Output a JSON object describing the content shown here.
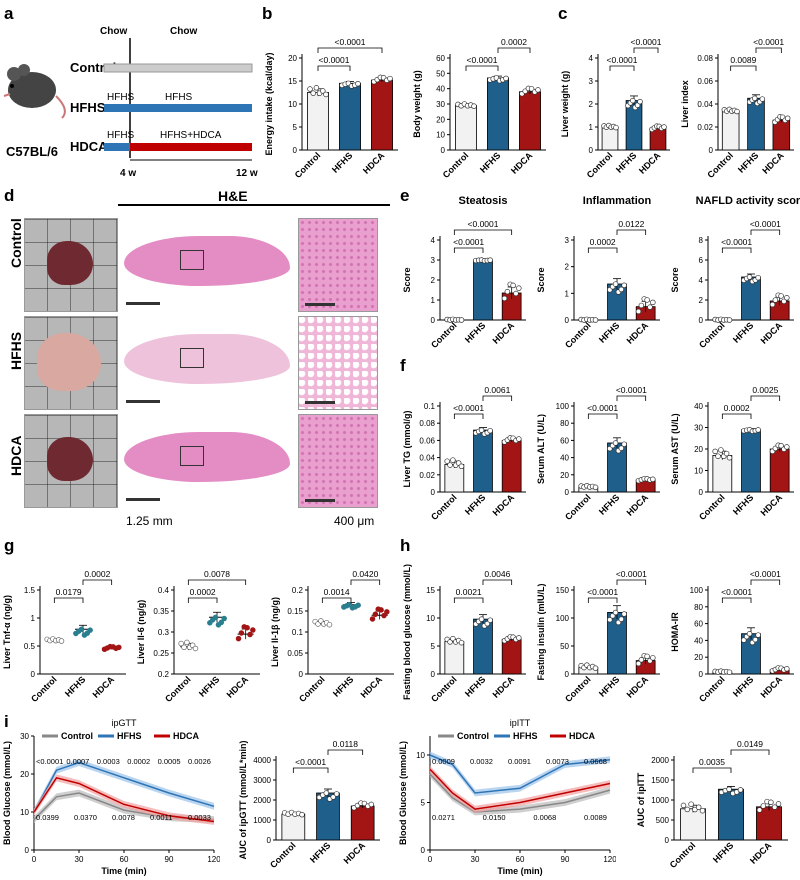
{
  "panels": {
    "a": "a",
    "b": "b",
    "c": "c",
    "d": "d",
    "e": "e",
    "f": "f",
    "g": "g",
    "h": "h",
    "i": "i"
  },
  "colors": {
    "control": "#f2f2f2",
    "hfhs": "#1f5f8b",
    "hdca": "#a31515",
    "chow": "#cccccc",
    "hfhsbar": "#2e75b6",
    "hdcabar": "#c00000",
    "teal": "#2a7f8f",
    "tissue": "#e48cc4"
  },
  "design": {
    "strain": "C57BL/6",
    "groups": [
      "Control",
      "HFHS",
      "HDCA"
    ],
    "phase1": [
      "Chow",
      "HFHS",
      "HFHS"
    ],
    "phase2": [
      "Chow",
      "HFHS",
      "HFHS+HDCA"
    ],
    "time_labels": [
      "4 w",
      "12 w"
    ]
  },
  "he": {
    "title": "H&E",
    "rows": [
      "Control",
      "HFHS",
      "HDCA"
    ],
    "scale1": "1.25 mm",
    "scale2": "400 μm"
  },
  "chart_data": [
    {
      "id": "b1",
      "type": "bar",
      "categories": [
        "Control",
        "HFHS",
        "HDCA"
      ],
      "values": [
        12.5,
        14.5,
        15.2
      ],
      "sem": [
        0.8,
        0.4,
        0.4
      ],
      "ylabel": "Energy intake (kcal/day)",
      "ylim": [
        0,
        20
      ],
      "yticks": [
        0,
        5,
        10,
        15,
        20
      ],
      "pvals": [
        "<0.0001",
        "<0.0001"
      ],
      "pairs": [
        [
          0,
          1
        ],
        [
          0,
          2
        ]
      ]
    },
    {
      "id": "b2",
      "type": "bar",
      "categories": [
        "Control",
        "HFHS",
        "HDCA"
      ],
      "values": [
        29,
        47,
        38
      ],
      "sem": [
        0.8,
        1.2,
        1.5
      ],
      "ylabel": "Body weight (g)",
      "ylim": [
        0,
        60
      ],
      "yticks": [
        0,
        10,
        20,
        30,
        40,
        50,
        60
      ],
      "pvals": [
        "<0.0001",
        "0.0002"
      ],
      "pairs": [
        [
          0,
          1
        ],
        [
          1,
          2
        ]
      ]
    },
    {
      "id": "c1",
      "type": "bar",
      "categories": [
        "Control",
        "HFHS",
        "HDCA"
      ],
      "values": [
        1.0,
        2.15,
        0.95
      ],
      "sem": [
        0.05,
        0.2,
        0.06
      ],
      "ylabel": "Liver weight (g)",
      "ylim": [
        0,
        4
      ],
      "yticks": [
        0,
        1,
        2,
        3,
        4
      ],
      "pvals": [
        "<0.0001",
        "<0.0001"
      ],
      "pairs": [
        [
          0,
          1
        ],
        [
          1,
          2
        ]
      ]
    },
    {
      "id": "c2",
      "type": "bar",
      "categories": [
        "Control",
        "HFHS",
        "HDCA"
      ],
      "values": [
        0.034,
        0.045,
        0.026
      ],
      "sem": [
        0.001,
        0.003,
        0.002
      ],
      "ylabel": "Liver index",
      "ylim": [
        0,
        0.08
      ],
      "yticks": [
        0,
        0.02,
        0.04,
        0.06,
        0.08
      ],
      "pvals": [
        "0.0089",
        "<0.0001"
      ],
      "pairs": [
        [
          0,
          1
        ],
        [
          1,
          2
        ]
      ]
    },
    {
      "id": "e1",
      "type": "bar",
      "title": "Steatosis",
      "categories": [
        "Control",
        "HFHS",
        "HDCA"
      ],
      "values": [
        0,
        3,
        1.35
      ],
      "sem": [
        0,
        0,
        0.3
      ],
      "ylabel": "Score",
      "ylim": [
        0,
        4
      ],
      "yticks": [
        0,
        1,
        2,
        3,
        4
      ],
      "pvals": [
        "<0.0001",
        "<0.0001"
      ],
      "pairs": [
        [
          0,
          1
        ],
        [
          0,
          2
        ]
      ]
    },
    {
      "id": "e2",
      "type": "bar",
      "title": "Inflammation",
      "categories": [
        "Control",
        "HFHS",
        "HDCA"
      ],
      "values": [
        0,
        1.35,
        0.5
      ],
      "sem": [
        0,
        0.2,
        0.2
      ],
      "ylabel": "Score",
      "ylim": [
        0,
        3
      ],
      "yticks": [
        0,
        1,
        2,
        3
      ],
      "pvals": [
        "0.0002",
        "0.0122"
      ],
      "pairs": [
        [
          0,
          1
        ],
        [
          1,
          2
        ]
      ]
    },
    {
      "id": "e3",
      "type": "bar",
      "title": "NAFLD activity score",
      "categories": [
        "Control",
        "HFHS",
        "HDCA"
      ],
      "values": [
        0,
        4.3,
        1.9
      ],
      "sem": [
        0,
        0.3,
        0.4
      ],
      "ylabel": "Score",
      "ylim": [
        0,
        8
      ],
      "yticks": [
        0,
        2,
        4,
        6,
        8
      ],
      "pvals": [
        "<0.0001",
        "<0.0001"
      ],
      "pairs": [
        [
          0,
          1
        ],
        [
          1,
          2
        ]
      ]
    },
    {
      "id": "f1",
      "type": "bar",
      "categories": [
        "Control",
        "HFHS",
        "HDCA"
      ],
      "values": [
        0.032,
        0.072,
        0.06
      ],
      "sem": [
        0.004,
        0.003,
        0.002
      ],
      "ylabel": "Liver TG (mmol/g)",
      "ylim": [
        0,
        0.1
      ],
      "yticks": [
        0,
        0.02,
        0.04,
        0.06,
        0.08,
        0.1
      ],
      "pvals": [
        "<0.0001",
        "0.0061"
      ],
      "pairs": [
        [
          0,
          1
        ],
        [
          1,
          2
        ]
      ]
    },
    {
      "id": "f2",
      "type": "bar",
      "categories": [
        "Control",
        "HFHS",
        "HDCA"
      ],
      "values": [
        6,
        57,
        14
      ],
      "sem": [
        1,
        6,
        1
      ],
      "ylabel": "Serum ALT (U/L)",
      "ylim": [
        0,
        100
      ],
      "yticks": [
        0,
        20,
        40,
        60,
        80,
        100
      ],
      "pvals": [
        "<0.0001",
        "<0.0001"
      ],
      "pairs": [
        [
          0,
          1
        ],
        [
          1,
          2
        ]
      ]
    },
    {
      "id": "f3",
      "type": "bar",
      "categories": [
        "Control",
        "HFHS",
        "HDCA"
      ],
      "values": [
        17,
        29,
        20
      ],
      "sem": [
        2,
        0.5,
        1.2
      ],
      "ylabel": "Serum AST (U/L)",
      "ylim": [
        0,
        40
      ],
      "yticks": [
        0,
        10,
        20,
        30,
        40
      ],
      "pvals": [
        "0.0002",
        "0.0025"
      ],
      "pairs": [
        [
          0,
          1
        ],
        [
          1,
          2
        ]
      ]
    },
    {
      "id": "g1",
      "type": "scatter",
      "categories": [
        "Control",
        "HFHS",
        "HDCA"
      ],
      "values": [
        0.6,
        0.8,
        0.46
      ],
      "sem": [
        0.02,
        0.07,
        0.02
      ],
      "ylabel": "Liver Tnf-α (ng/g)",
      "ylim": [
        0,
        1.5
      ],
      "yticks": [
        0,
        0.5,
        1.0,
        1.5
      ],
      "pvals": [
        "0.0179",
        "0.0002"
      ],
      "pairs": [
        [
          0,
          1
        ],
        [
          1,
          2
        ]
      ]
    },
    {
      "id": "g2",
      "type": "scatter",
      "categories": [
        "Control",
        "HFHS",
        "HDCA"
      ],
      "values": [
        0.265,
        0.335,
        0.295
      ],
      "sem": [
        0.008,
        0.012,
        0.012
      ],
      "ylabel": "Liver Il-6 (ng/g)",
      "ylim": [
        0.2,
        0.4
      ],
      "yticks": [
        0.2,
        0.25,
        0.3,
        0.35,
        0.4
      ],
      "pvals": [
        "0.0002",
        "0.0078"
      ],
      "pairs": [
        [
          0,
          1
        ],
        [
          0,
          2
        ]
      ]
    },
    {
      "id": "g3",
      "type": "scatter",
      "categories": [
        "Control",
        "HFHS",
        "HDCA"
      ],
      "values": [
        0.12,
        0.165,
        0.14
      ],
      "sem": [
        0.005,
        0.005,
        0.01
      ],
      "ylabel": "Liver Il-1β (ng/g)",
      "ylim": [
        0,
        0.2
      ],
      "yticks": [
        0,
        0.05,
        0.1,
        0.15,
        0.2
      ],
      "pvals": [
        "0.0014",
        "0.0420"
      ],
      "pairs": [
        [
          0,
          1
        ],
        [
          1,
          2
        ]
      ]
    },
    {
      "id": "h1",
      "type": "bar",
      "categories": [
        "Control",
        "HFHS",
        "HDCA"
      ],
      "values": [
        5.8,
        9.8,
        6.2
      ],
      "sem": [
        0.4,
        0.8,
        0.3
      ],
      "ylabel": "Fasting blood glucose (mmol/L)",
      "ylim": [
        0,
        15
      ],
      "yticks": [
        0,
        5,
        10,
        15
      ],
      "pvals": [
        "0.0021",
        "0.0046"
      ],
      "pairs": [
        [
          0,
          1
        ],
        [
          1,
          2
        ]
      ]
    },
    {
      "id": "h2",
      "type": "bar",
      "categories": [
        "Control",
        "HFHS",
        "HDCA"
      ],
      "values": [
        12,
        110,
        24
      ],
      "sem": [
        3,
        12,
        6
      ],
      "ylabel": "Fasting insulin (mIU/L)",
      "ylim": [
        0,
        150
      ],
      "yticks": [
        0,
        50,
        100,
        150
      ],
      "pvals": [
        "<0.0001",
        "<0.0001"
      ],
      "pairs": [
        [
          0,
          1
        ],
        [
          1,
          2
        ]
      ]
    },
    {
      "id": "h3",
      "type": "bar",
      "categories": [
        "Control",
        "HFHS",
        "HDCA"
      ],
      "values": [
        2.5,
        48,
        5
      ],
      "sem": [
        0.5,
        7,
        1.5
      ],
      "ylabel": "HOMA-IR",
      "ylim": [
        0,
        100
      ],
      "yticks": [
        0,
        20,
        40,
        60,
        80,
        100
      ],
      "pvals": [
        "<0.0001",
        "<0.0001"
      ],
      "pairs": [
        [
          0,
          1
        ],
        [
          1,
          2
        ]
      ]
    },
    {
      "id": "i2",
      "type": "bar",
      "categories": [
        "Control",
        "HFHS",
        "HDCA"
      ],
      "values": [
        1300,
        2350,
        1700
      ],
      "sem": [
        60,
        200,
        100
      ],
      "ylabel": "AUC of ipGTT (mmol/L*min)",
      "ylim": [
        0,
        4000
      ],
      "yticks": [
        0,
        1000,
        2000,
        3000,
        4000
      ],
      "pvals": [
        "<0.0001",
        "0.0118"
      ],
      "pairs": [
        [
          0,
          1
        ],
        [
          1,
          2
        ]
      ]
    },
    {
      "id": "i4",
      "type": "bar",
      "categories": [
        "Control",
        "HFHS",
        "HDCA"
      ],
      "values": [
        780,
        1270,
        830
      ],
      "sem": [
        90,
        70,
        90
      ],
      "ylabel": "AUC of ipITT",
      "ylim": [
        0,
        2000
      ],
      "yticks": [
        0,
        500,
        1000,
        1500,
        2000
      ],
      "pvals": [
        "0.0035",
        "0.0149"
      ],
      "pairs": [
        [
          0,
          1
        ],
        [
          1,
          2
        ]
      ]
    },
    {
      "id": "i1",
      "type": "line",
      "title": "ipGTT",
      "legend": [
        "Control",
        "HFHS",
        "HDCA"
      ],
      "x": [
        0,
        15,
        30,
        60,
        90,
        120
      ],
      "series": [
        {
          "name": "Control",
          "values": [
            8,
            14,
            15,
            10.5,
            8.5,
            8
          ]
        },
        {
          "name": "HFHS",
          "values": [
            10,
            21,
            23,
            19,
            15,
            11.5
          ]
        },
        {
          "name": "HDCA",
          "values": [
            10,
            19,
            17.5,
            12,
            9,
            7.5
          ]
        }
      ],
      "xlabel": "Time (min)",
      "ylabel": "Blood Glucose (mmol/L)",
      "ylim": [
        0,
        30
      ],
      "yticks": [
        0,
        10,
        20,
        30
      ],
      "xticks": [
        0,
        30,
        60,
        90,
        120
      ],
      "annots": [
        "<0.0001",
        "0.0007",
        "0.0003",
        "0.0002",
        "0.0005",
        "0.0026",
        "0.0399",
        "0.0370",
        "0.0078",
        "0.0011",
        "0.0033"
      ]
    },
    {
      "id": "i3",
      "type": "line",
      "title": "ipITT",
      "legend": [
        "Control",
        "HFHS",
        "HDCA"
      ],
      "x": [
        0,
        15,
        30,
        60,
        90,
        120
      ],
      "series": [
        {
          "name": "Control",
          "values": [
            8,
            5.5,
            4,
            4.3,
            5,
            6.3
          ]
        },
        {
          "name": "HFHS",
          "values": [
            10,
            9,
            6,
            6.5,
            9,
            9.5
          ]
        },
        {
          "name": "HDCA",
          "values": [
            8.5,
            6,
            4.3,
            5,
            6,
            7
          ]
        }
      ],
      "xlabel": "Time (min)",
      "ylabel": "Blood Glucose (mmol/L)",
      "ylim": [
        0,
        12
      ],
      "yticks": [
        0,
        5,
        10
      ],
      "xticks": [
        0,
        30,
        60,
        90,
        120
      ],
      "annots": [
        "0.0009",
        "0.0032",
        "0.0091",
        "0.0073",
        "0.0668",
        "0.0271",
        "0.0150",
        "0.0068",
        "0.0089"
      ]
    }
  ]
}
